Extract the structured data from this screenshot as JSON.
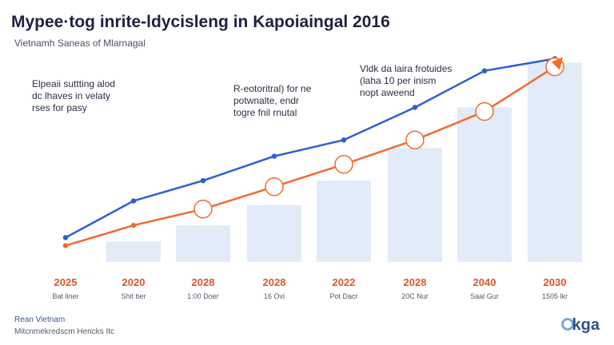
{
  "header": {
    "title": "Mypee·tog inrite-ldycisleng in Kapoiaingal 2016",
    "subtitle": "Vietnamh Saneas of Mlarnagal"
  },
  "annotations": [
    "Elpeaii suttting alod\ndc lhaves in velaty\nrses for pasy",
    "R-eotoritral) for ne\npotwnalte, endr\ntogre fnil rnutal",
    "Vldk da laira frotuides\n(laha 10 per inism\nnopt aweend"
  ],
  "footer": {
    "line1": "Rean Vietnam",
    "line2": "Mitcnmekredscm Hencks Itc",
    "logo": "kga"
  },
  "colors": {
    "blue_line": "#2f5fd0",
    "orange_line": "#f26b2e",
    "bar_fill": "#dde7f7",
    "year_label": "#e0552a"
  },
  "chart_data": {
    "type": "line",
    "categories": [
      "2025",
      "2020",
      "2028",
      "2028",
      "2022",
      "2028",
      "2040",
      "2030"
    ],
    "sublabels": [
      "Bat liner",
      "Shit ber",
      "1:00 Doer",
      "16 Ovi",
      "Pot Dacr",
      "20C Nur",
      "Saal Gur",
      "1505 lkr"
    ],
    "series": [
      {
        "name": "",
        "values": [
          12,
          30,
          40,
          52,
          60,
          76,
          94,
          100
        ]
      },
      {
        "name": "",
        "values": [
          8,
          18,
          26,
          37,
          48,
          60,
          74,
          96
        ]
      }
    ],
    "bars": [
      0,
      10,
      18,
      28,
      40,
      56,
      76,
      98
    ],
    "ylim": [
      0,
      110
    ],
    "grid": false
  }
}
